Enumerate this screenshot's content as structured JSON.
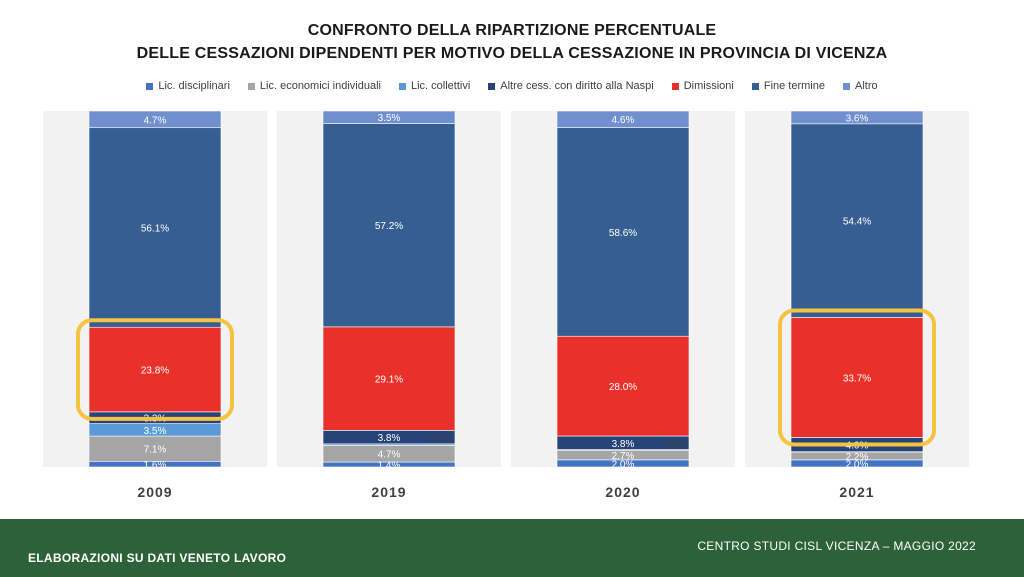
{
  "header": {
    "title_line1": "CONFRONTO DELLA RIPARTIZIONE PERCENTUALE",
    "title_line2": "DELLE CESSAZIONI DIPENDENTI PER MOTIVO DELLA CESSAZIONE IN PROVINCIA DI VICENZA"
  },
  "footer": {
    "left": "ELABORAZIONI SU DATI VENETO LAVORO",
    "right": "CENTRO STUDI CISL VICENZA – MAGGIO 2022"
  },
  "colors": {
    "highlight": "#f5c242",
    "footer_bg": "#2d6137"
  },
  "chart_data": {
    "type": "bar",
    "stacked": true,
    "normalized": true,
    "categories": [
      "2009",
      "2019",
      "2020",
      "2021"
    ],
    "series": [
      {
        "name": "Lic. disciplinari",
        "color": "#4472c4",
        "values": [
          1.6,
          1.4,
          2.0,
          2.0
        ]
      },
      {
        "name": "Lic. economici individuali",
        "color": "#a5a5a5",
        "values": [
          7.1,
          4.7,
          2.7,
          2.2
        ]
      },
      {
        "name": "Lic. collettivi",
        "color": "#5b9bd5",
        "values": [
          3.5,
          0.4,
          0.2,
          0.1
        ]
      },
      {
        "name": "Altre cess. con diritto alla Naspi",
        "color": "#264478",
        "values": [
          3.3,
          3.8,
          3.8,
          4.0
        ]
      },
      {
        "name": "Dimissioni",
        "color": "#e8312a",
        "values": [
          23.8,
          29.1,
          28.0,
          33.7
        ]
      },
      {
        "name": "Fine termine",
        "color": "#355e91",
        "values": [
          56.1,
          57.2,
          58.6,
          54.4
        ]
      },
      {
        "name": "Altro",
        "color": "#6f8fcf",
        "values": [
          4.7,
          3.5,
          4.6,
          3.6
        ]
      }
    ],
    "data_labels": [
      [
        "1.6%",
        "7.1%",
        "3.5%",
        "3.3%",
        "23.8%",
        "56.1%",
        "4.7%"
      ],
      [
        "1.4%",
        "4.7%",
        "0.4%",
        "3.8%",
        "29.1%",
        "57.2%",
        "3.5%"
      ],
      [
        "2.0%",
        "2.7%",
        "0.2%",
        "3.8%",
        "28.0%",
        "58.6%",
        "4.6%"
      ],
      [
        "2.0%",
        "2.2%",
        "0.1%",
        "4.0%",
        "33.7%",
        "54.4%",
        "3.6%"
      ]
    ],
    "highlighted": [
      "2009 Dimissioni",
      "2021 Dimissioni"
    ],
    "ylim": [
      0,
      100
    ],
    "legend_position": "top",
    "xlabel": "",
    "ylabel": ""
  }
}
